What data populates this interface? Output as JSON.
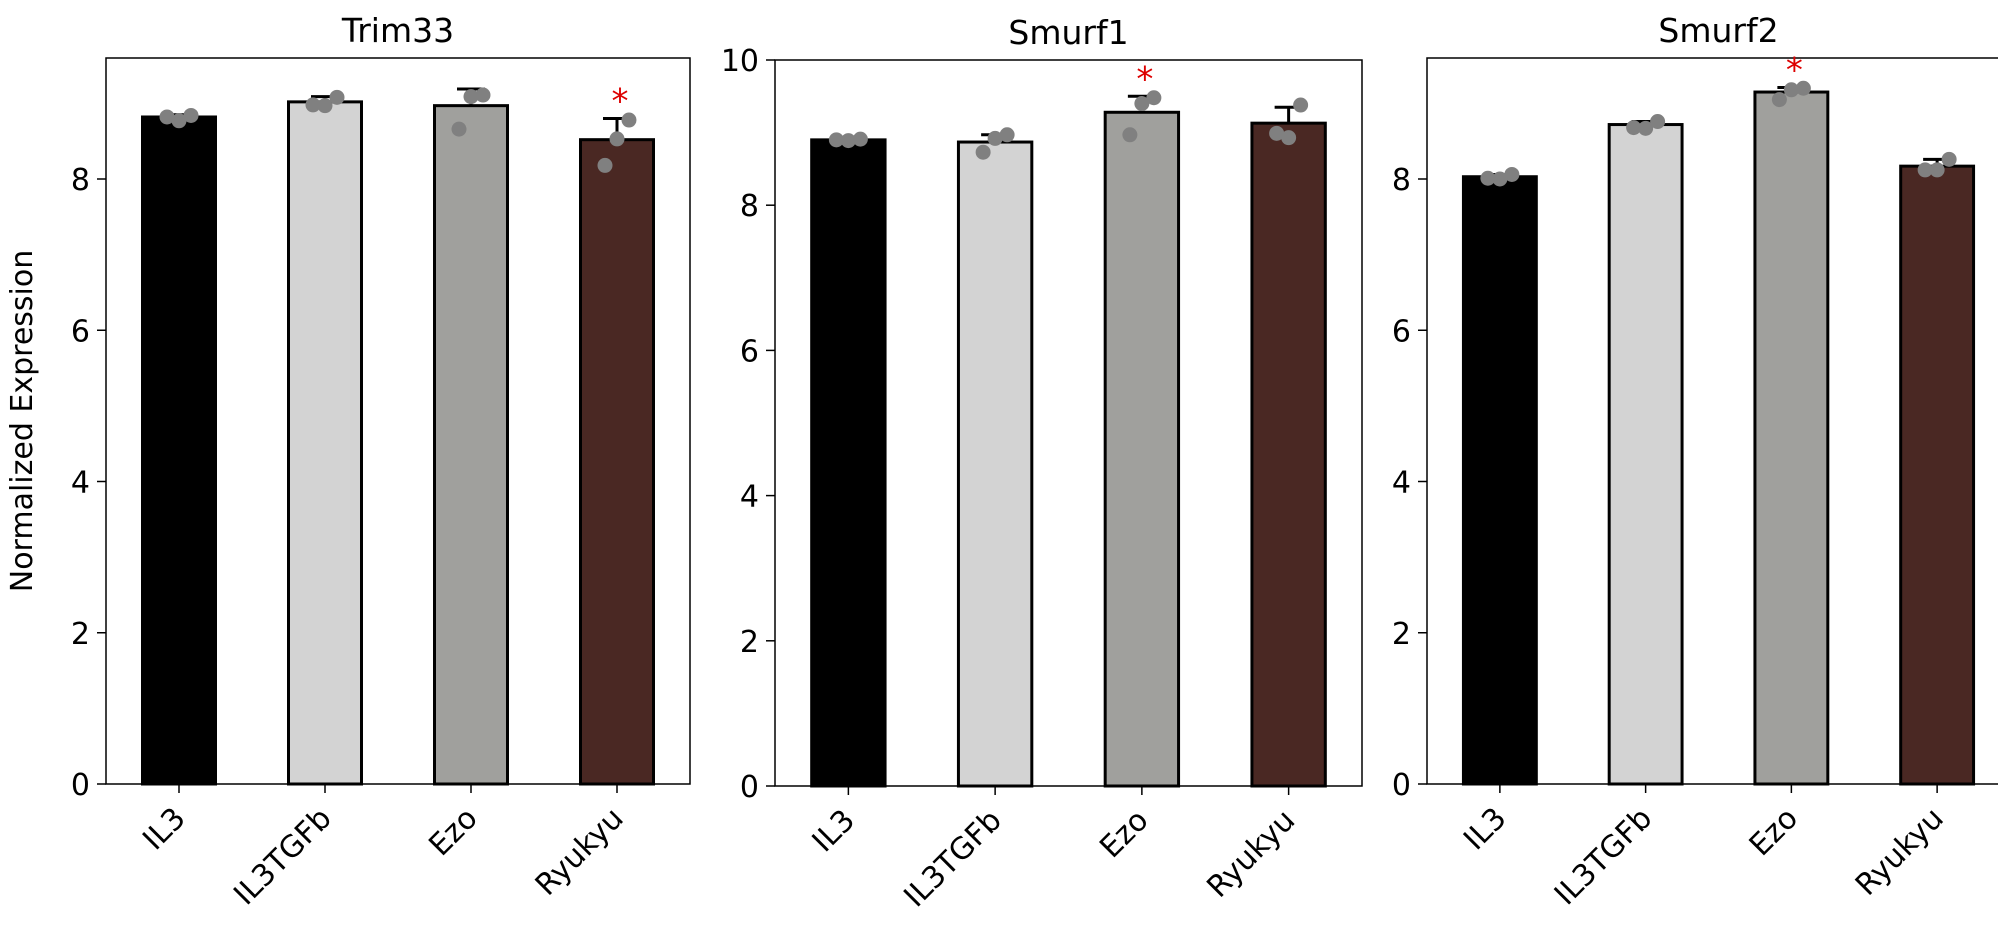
{
  "ylabel": "Normalized Expression",
  "colors": {
    "IL3": "#000000",
    "IL3TGFb": "#d3d3d3",
    "Ezo": "#a0a09d",
    "Ryukyu": "#4a2823",
    "points": "#808080",
    "significance": "#dd0000"
  },
  "chart_data": [
    {
      "type": "bar",
      "title": "Trim33",
      "categories": [
        "IL3",
        "IL3TGFb",
        "Ezo",
        "Ryukyu"
      ],
      "values": [
        8.82,
        9.02,
        8.97,
        8.52
      ],
      "error": [
        0.03,
        0.07,
        0.22,
        0.28
      ],
      "points": [
        [
          8.82,
          8.77,
          8.84
        ],
        [
          8.98,
          8.97,
          9.08
        ],
        [
          8.66,
          9.09,
          9.11
        ],
        [
          8.18,
          8.53,
          8.78
        ]
      ],
      "significance": [
        "",
        "",
        "",
        "*"
      ],
      "ylim": [
        0,
        9.6
      ],
      "yticks": [
        0,
        2,
        4,
        6,
        8
      ],
      "ylabel": "Normalized Expression"
    },
    {
      "type": "bar",
      "title": "Smurf1",
      "categories": [
        "IL3",
        "IL3TGFb",
        "Ezo",
        "Ryukyu"
      ],
      "values": [
        8.9,
        8.87,
        9.28,
        9.13
      ],
      "error": [
        0.02,
        0.1,
        0.22,
        0.22
      ],
      "points": [
        [
          8.9,
          8.89,
          8.91
        ],
        [
          8.73,
          8.92,
          8.97
        ],
        [
          8.97,
          9.4,
          9.48
        ],
        [
          8.99,
          8.93,
          9.38
        ]
      ],
      "significance": [
        "",
        "",
        "*",
        ""
      ],
      "ylim": [
        0,
        10
      ],
      "yticks": [
        0,
        2,
        4,
        6,
        8,
        10
      ],
      "ylabel": ""
    },
    {
      "type": "bar",
      "title": "Smurf2",
      "categories": [
        "IL3",
        "IL3TGFb",
        "Ezo",
        "Ryukyu"
      ],
      "values": [
        8.03,
        8.72,
        9.15,
        8.17
      ],
      "error": [
        0.03,
        0.04,
        0.06,
        0.09
      ],
      "points": [
        [
          8.01,
          8.0,
          8.06
        ],
        [
          8.68,
          8.67,
          8.76
        ],
        [
          9.05,
          9.18,
          9.2
        ],
        [
          8.12,
          8.12,
          8.26
        ]
      ],
      "significance": [
        "",
        "",
        "*",
        ""
      ],
      "ylim": [
        0,
        9.6
      ],
      "yticks": [
        0,
        2,
        4,
        6,
        8
      ],
      "ylabel": ""
    }
  ]
}
